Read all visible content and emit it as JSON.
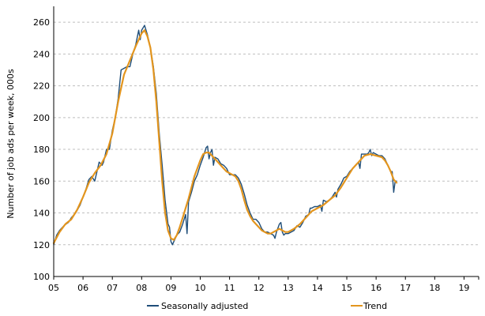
{
  "chart_data": {
    "type": "line",
    "title": "",
    "xlabel": "",
    "ylabel": "Number of job ads per week, 000s",
    "xlim": [
      2005.0,
      2019.5
    ],
    "ylim": [
      100,
      270
    ],
    "yticks": [
      100,
      120,
      140,
      160,
      180,
      200,
      220,
      240,
      260
    ],
    "xtick_labels": [
      "05",
      "06",
      "07",
      "08",
      "09",
      "10",
      "11",
      "12",
      "13",
      "14",
      "15",
      "16",
      "17",
      "18",
      "19"
    ],
    "grid": "horizontal dashed",
    "legend_position": "bottom",
    "colors": {
      "seasonally_adjusted": "#1f4e79",
      "trend": "#e3951e",
      "grid": "#bfbfbf",
      "axis": "#000000"
    },
    "series": [
      {
        "name": "Seasonally adjusted",
        "points": [
          [
            2005.0,
            120
          ],
          [
            2005.1,
            126
          ],
          [
            2005.2,
            129
          ],
          [
            2005.35,
            132
          ],
          [
            2005.5,
            134
          ],
          [
            2005.6,
            137
          ],
          [
            2005.75,
            140
          ],
          [
            2005.9,
            145
          ],
          [
            2006.0,
            150
          ],
          [
            2006.1,
            155
          ],
          [
            2006.2,
            161
          ],
          [
            2006.3,
            163
          ],
          [
            2006.4,
            160
          ],
          [
            2006.5,
            168
          ],
          [
            2006.55,
            172
          ],
          [
            2006.65,
            170
          ],
          [
            2006.7,
            172
          ],
          [
            2006.8,
            180
          ],
          [
            2006.9,
            180
          ],
          [
            2007.0,
            192
          ],
          [
            2007.1,
            200
          ],
          [
            2007.2,
            212
          ],
          [
            2007.3,
            230
          ],
          [
            2007.4,
            231
          ],
          [
            2007.5,
            232
          ],
          [
            2007.6,
            232
          ],
          [
            2007.7,
            240
          ],
          [
            2007.8,
            246
          ],
          [
            2007.9,
            255
          ],
          [
            2007.95,
            249
          ],
          [
            2008.0,
            255
          ],
          [
            2008.1,
            258
          ],
          [
            2008.2,
            252
          ],
          [
            2008.3,
            244
          ],
          [
            2008.4,
            232
          ],
          [
            2008.5,
            215
          ],
          [
            2008.6,
            190
          ],
          [
            2008.7,
            170
          ],
          [
            2008.8,
            148
          ],
          [
            2008.9,
            133
          ],
          [
            2008.95,
            131
          ],
          [
            2009.0,
            122
          ],
          [
            2009.05,
            120
          ],
          [
            2009.1,
            122
          ],
          [
            2009.2,
            126
          ],
          [
            2009.3,
            128
          ],
          [
            2009.4,
            133
          ],
          [
            2009.5,
            139
          ],
          [
            2009.55,
            127
          ],
          [
            2009.6,
            147
          ],
          [
            2009.7,
            153
          ],
          [
            2009.8,
            160
          ],
          [
            2009.9,
            164
          ],
          [
            2010.0,
            170
          ],
          [
            2010.1,
            175
          ],
          [
            2010.2,
            181
          ],
          [
            2010.25,
            182
          ],
          [
            2010.3,
            174
          ],
          [
            2010.35,
            178
          ],
          [
            2010.4,
            180
          ],
          [
            2010.45,
            170
          ],
          [
            2010.5,
            175
          ],
          [
            2010.6,
            174
          ],
          [
            2010.7,
            171
          ],
          [
            2010.8,
            170
          ],
          [
            2010.9,
            168
          ],
          [
            2011.0,
            164
          ],
          [
            2011.1,
            164
          ],
          [
            2011.2,
            164
          ],
          [
            2011.3,
            162
          ],
          [
            2011.4,
            158
          ],
          [
            2011.5,
            152
          ],
          [
            2011.6,
            145
          ],
          [
            2011.7,
            140
          ],
          [
            2011.8,
            136
          ],
          [
            2011.9,
            136
          ],
          [
            2012.0,
            134
          ],
          [
            2012.1,
            130
          ],
          [
            2012.2,
            128
          ],
          [
            2012.3,
            128
          ],
          [
            2012.4,
            127
          ],
          [
            2012.5,
            126
          ],
          [
            2012.55,
            124
          ],
          [
            2012.6,
            128
          ],
          [
            2012.7,
            133
          ],
          [
            2012.75,
            134
          ],
          [
            2012.8,
            128
          ],
          [
            2012.85,
            126
          ],
          [
            2012.9,
            127
          ],
          [
            2013.0,
            127
          ],
          [
            2013.1,
            128
          ],
          [
            2013.2,
            129
          ],
          [
            2013.3,
            132
          ],
          [
            2013.4,
            131
          ],
          [
            2013.5,
            134
          ],
          [
            2013.6,
            138
          ],
          [
            2013.7,
            139
          ],
          [
            2013.75,
            143
          ],
          [
            2013.8,
            143
          ],
          [
            2013.9,
            144
          ],
          [
            2014.0,
            144
          ],
          [
            2014.1,
            145
          ],
          [
            2014.15,
            141
          ],
          [
            2014.2,
            148
          ],
          [
            2014.3,
            147
          ],
          [
            2014.4,
            148
          ],
          [
            2014.5,
            150
          ],
          [
            2014.6,
            153
          ],
          [
            2014.65,
            150
          ],
          [
            2014.7,
            155
          ],
          [
            2014.8,
            158
          ],
          [
            2014.9,
            162
          ],
          [
            2015.0,
            163
          ],
          [
            2015.1,
            166
          ],
          [
            2015.2,
            168
          ],
          [
            2015.3,
            170
          ],
          [
            2015.4,
            172
          ],
          [
            2015.45,
            168
          ],
          [
            2015.5,
            177
          ],
          [
            2015.6,
            177
          ],
          [
            2015.7,
            177
          ],
          [
            2015.75,
            178
          ],
          [
            2015.8,
            180
          ],
          [
            2015.85,
            176
          ],
          [
            2015.9,
            178
          ],
          [
            2016.0,
            177
          ],
          [
            2016.1,
            176
          ],
          [
            2016.2,
            176
          ],
          [
            2016.3,
            174
          ],
          [
            2016.4,
            170
          ],
          [
            2016.5,
            166
          ],
          [
            2016.55,
            166
          ],
          [
            2016.6,
            153
          ],
          [
            2016.65,
            160
          ],
          [
            2016.7,
            160
          ]
        ]
      },
      {
        "name": "Trend",
        "points": [
          [
            2005.0,
            121
          ],
          [
            2005.2,
            128
          ],
          [
            2005.4,
            133
          ],
          [
            2005.6,
            136
          ],
          [
            2005.8,
            142
          ],
          [
            2006.0,
            150
          ],
          [
            2006.2,
            159
          ],
          [
            2006.4,
            165
          ],
          [
            2006.6,
            170
          ],
          [
            2006.8,
            177
          ],
          [
            2007.0,
            190
          ],
          [
            2007.2,
            210
          ],
          [
            2007.4,
            227
          ],
          [
            2007.6,
            236
          ],
          [
            2007.8,
            245
          ],
          [
            2008.0,
            253
          ],
          [
            2008.1,
            255
          ],
          [
            2008.2,
            251
          ],
          [
            2008.3,
            244
          ],
          [
            2008.4,
            230
          ],
          [
            2008.5,
            210
          ],
          [
            2008.6,
            185
          ],
          [
            2008.7,
            160
          ],
          [
            2008.8,
            140
          ],
          [
            2008.9,
            129
          ],
          [
            2009.0,
            124
          ],
          [
            2009.1,
            123
          ],
          [
            2009.2,
            126
          ],
          [
            2009.3,
            131
          ],
          [
            2009.4,
            137
          ],
          [
            2009.5,
            143
          ],
          [
            2009.6,
            149
          ],
          [
            2009.7,
            156
          ],
          [
            2009.8,
            163
          ],
          [
            2009.9,
            168
          ],
          [
            2010.0,
            173
          ],
          [
            2010.1,
            177
          ],
          [
            2010.2,
            178
          ],
          [
            2010.3,
            178
          ],
          [
            2010.4,
            176
          ],
          [
            2010.5,
            174
          ],
          [
            2010.6,
            172
          ],
          [
            2010.7,
            170
          ],
          [
            2010.8,
            168
          ],
          [
            2010.9,
            166
          ],
          [
            2011.0,
            165
          ],
          [
            2011.2,
            163
          ],
          [
            2011.3,
            160
          ],
          [
            2011.4,
            155
          ],
          [
            2011.5,
            148
          ],
          [
            2011.6,
            142
          ],
          [
            2011.7,
            138
          ],
          [
            2011.8,
            135
          ],
          [
            2011.9,
            133
          ],
          [
            2012.0,
            131
          ],
          [
            2012.1,
            129
          ],
          [
            2012.2,
            128
          ],
          [
            2012.3,
            127
          ],
          [
            2012.4,
            127
          ],
          [
            2012.5,
            128
          ],
          [
            2012.6,
            129
          ],
          [
            2012.7,
            130
          ],
          [
            2012.8,
            129
          ],
          [
            2012.9,
            128
          ],
          [
            2013.0,
            128
          ],
          [
            2013.2,
            130
          ],
          [
            2013.4,
            133
          ],
          [
            2013.6,
            137
          ],
          [
            2013.8,
            141
          ],
          [
            2014.0,
            143
          ],
          [
            2014.2,
            145
          ],
          [
            2014.4,
            148
          ],
          [
            2014.6,
            151
          ],
          [
            2014.8,
            156
          ],
          [
            2015.0,
            162
          ],
          [
            2015.2,
            168
          ],
          [
            2015.4,
            172
          ],
          [
            2015.5,
            174
          ],
          [
            2015.6,
            176
          ],
          [
            2015.8,
            177
          ],
          [
            2016.0,
            176
          ],
          [
            2016.2,
            175
          ],
          [
            2016.3,
            173
          ],
          [
            2016.4,
            170
          ],
          [
            2016.5,
            166
          ],
          [
            2016.6,
            161
          ],
          [
            2016.7,
            159
          ]
        ]
      }
    ]
  }
}
